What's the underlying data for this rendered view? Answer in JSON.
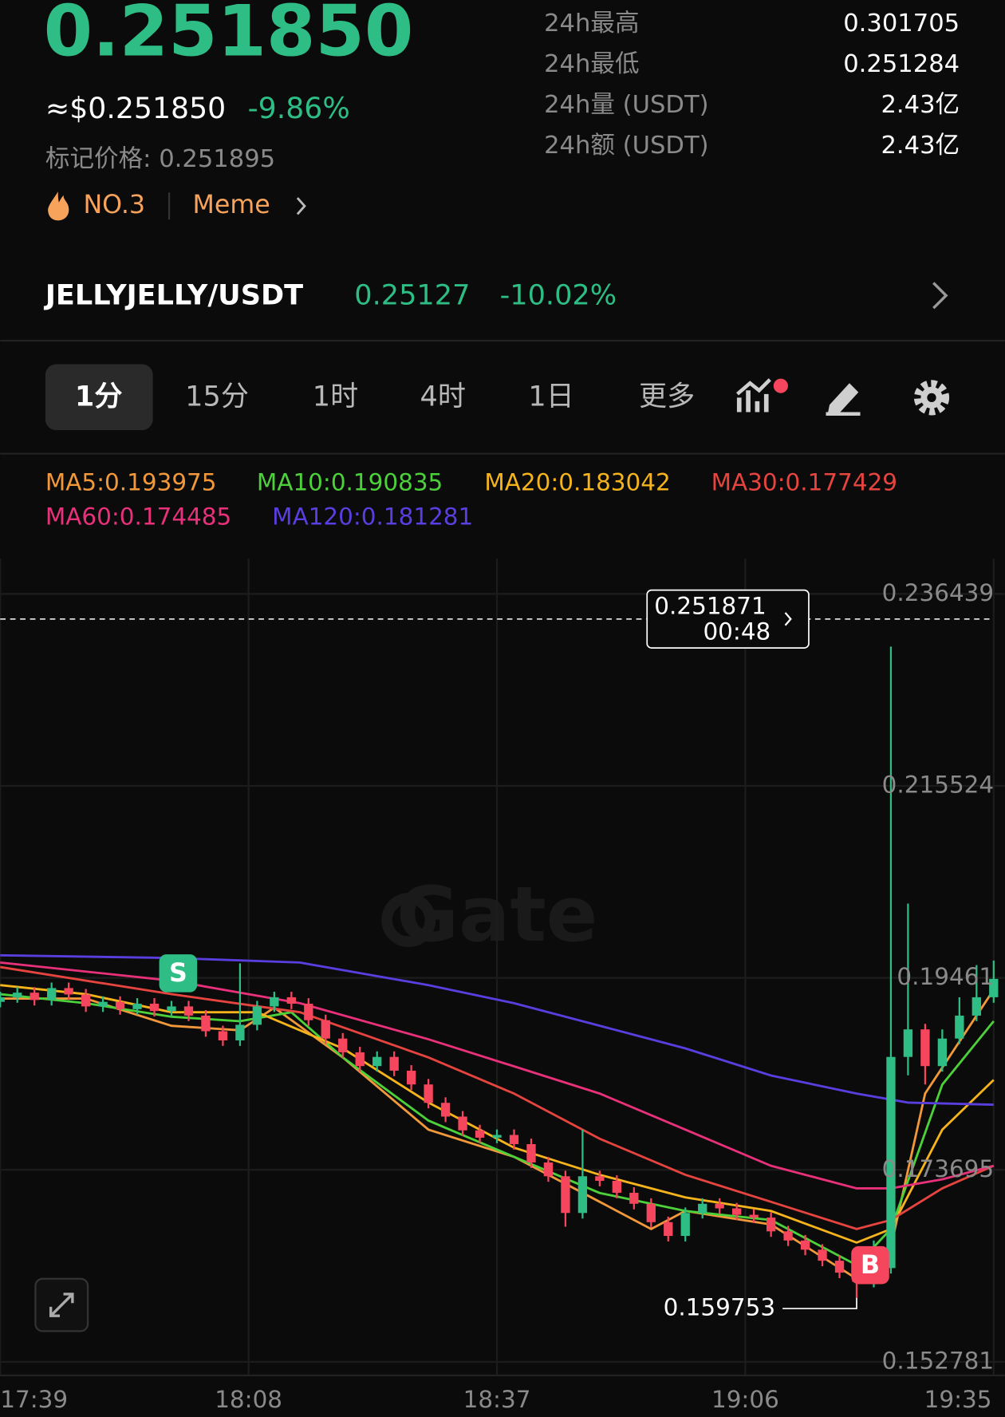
{
  "header": {
    "price": "0.251850",
    "usd_price": "≈$0.251850",
    "change": "-9.86%",
    "mark_price": "标记价格: 0.251895",
    "rank": "NO.3",
    "tag": "Meme",
    "stats": [
      {
        "label": "24h最高",
        "value": "0.301705"
      },
      {
        "label": "24h最低",
        "value": "0.251284"
      },
      {
        "label": "24h量 (USDT)",
        "value": "2.43亿"
      },
      {
        "label": "24h额 (USDT)",
        "value": "2.43亿"
      }
    ]
  },
  "pair": {
    "name": "JELLYJELLY/USDT",
    "price": "0.25127",
    "change": "-10.02%"
  },
  "tabs": [
    "1分",
    "15分",
    "1时",
    "4时",
    "1日",
    "更多"
  ],
  "chart_data": {
    "type": "candlestick",
    "watermark": "Gate",
    "last_price_label": "0.251871",
    "countdown": "00:48",
    "signals": [
      "S",
      "B"
    ],
    "x": [
      0,
      2,
      4,
      6,
      8,
      10,
      12,
      14,
      16,
      18,
      20,
      22,
      24,
      26,
      28,
      30,
      32,
      34,
      36,
      38,
      40,
      42,
      44,
      46,
      48,
      50,
      52,
      54,
      56,
      58,
      60,
      62,
      64,
      66,
      68,
      70,
      72,
      74,
      76,
      78,
      80,
      82,
      84,
      86,
      88,
      90,
      92,
      94,
      96,
      98,
      100,
      102,
      104,
      106,
      108,
      110,
      112,
      114,
      116
    ],
    "open": [
      0.192,
      0.1925,
      0.193,
      0.1922,
      0.1935,
      0.1928,
      0.1915,
      0.192,
      0.1912,
      0.1918,
      0.191,
      0.1915,
      0.1905,
      0.1888,
      0.1878,
      0.1895,
      0.1915,
      0.1925,
      0.1918,
      0.19,
      0.188,
      0.1865,
      0.185,
      0.186,
      0.1845,
      0.183,
      0.181,
      0.1795,
      0.178,
      0.1772,
      0.1775,
      0.1765,
      0.1745,
      0.173,
      0.169,
      0.173,
      0.1725,
      0.1712,
      0.17,
      0.168,
      0.1665,
      0.169,
      0.17,
      0.1695,
      0.1688,
      0.1685,
      0.167,
      0.166,
      0.165,
      0.1638,
      0.1625,
      0.1615,
      0.163,
      0.186,
      0.189,
      0.185,
      0.188,
      0.1905,
      0.1925
    ],
    "high": [
      0.1931,
      0.1936,
      0.1936,
      0.1941,
      0.1941,
      0.1934,
      0.1926,
      0.1926,
      0.1924,
      0.1924,
      0.1921,
      0.1921,
      0.1911,
      0.1894,
      0.1962,
      0.1921,
      0.1931,
      0.1931,
      0.1924,
      0.1906,
      0.1886,
      0.1871,
      0.1866,
      0.1866,
      0.1851,
      0.1836,
      0.1816,
      0.1801,
      0.1786,
      0.1781,
      0.1781,
      0.1771,
      0.1751,
      0.1736,
      0.1781,
      0.1736,
      0.1731,
      0.1718,
      0.1706,
      0.1686,
      0.1696,
      0.1706,
      0.1706,
      0.1701,
      0.1694,
      0.1691,
      0.1676,
      0.1666,
      0.1656,
      0.1644,
      0.1631,
      0.166,
      0.2307,
      0.2027,
      0.1896,
      0.189,
      0.1925,
      0.196,
      0.1965
    ],
    "low": [
      0.1914,
      0.1919,
      0.1916,
      0.1916,
      0.1922,
      0.1909,
      0.1909,
      0.1906,
      0.1906,
      0.1904,
      0.1904,
      0.1899,
      0.1882,
      0.1872,
      0.1872,
      0.1889,
      0.1909,
      0.1912,
      0.1894,
      0.1874,
      0.1859,
      0.1844,
      0.1844,
      0.1839,
      0.1824,
      0.1804,
      0.1789,
      0.1774,
      0.1766,
      0.1766,
      0.1759,
      0.1739,
      0.1724,
      0.1675,
      0.1684,
      0.1719,
      0.1706,
      0.1694,
      0.1674,
      0.1659,
      0.1659,
      0.1684,
      0.1689,
      0.1682,
      0.1679,
      0.1664,
      0.1654,
      0.1644,
      0.1632,
      0.1619,
      0.159753,
      0.1609,
      0.1624,
      0.184,
      0.183,
      0.1844,
      0.1874,
      0.1899,
      0.1919
    ],
    "close": [
      0.1925,
      0.193,
      0.1922,
      0.1935,
      0.1928,
      0.1915,
      0.192,
      0.1912,
      0.1918,
      0.191,
      0.1915,
      0.1905,
      0.1888,
      0.1878,
      0.1895,
      0.1915,
      0.1925,
      0.1918,
      0.19,
      0.188,
      0.1865,
      0.185,
      0.186,
      0.1845,
      0.183,
      0.181,
      0.1795,
      0.178,
      0.1772,
      0.1775,
      0.1765,
      0.1745,
      0.173,
      0.169,
      0.173,
      0.1725,
      0.1712,
      0.17,
      0.168,
      0.1665,
      0.169,
      0.17,
      0.1695,
      0.1688,
      0.1685,
      0.167,
      0.166,
      0.165,
      0.1638,
      0.1625,
      0.1615,
      0.163,
      0.186,
      0.189,
      0.185,
      0.188,
      0.1905,
      0.1925,
      0.1945
    ],
    "up_color": "#2ebd85",
    "down_color": "#f6465d",
    "series": [
      {
        "name": "MA5:0.193975",
        "color": "#f0983a",
        "x": [
          0,
          10,
          20,
          28,
          32,
          40,
          50,
          60,
          70,
          76,
          80,
          90,
          100,
          104,
          108,
          116
        ],
        "values": [
          0.19235,
          0.19235,
          0.18939,
          0.1889,
          0.19136,
          0.18595,
          0.17808,
          0.17512,
          0.17021,
          0.16725,
          0.16922,
          0.16774,
          0.16184,
          0.16529,
          0.18201,
          0.19333
        ]
      },
      {
        "name": "MA10:0.190835",
        "color": "#4cd13b",
        "x": [
          0,
          10,
          20,
          28,
          34,
          40,
          50,
          60,
          70,
          80,
          90,
          100,
          104,
          110,
          116
        ],
        "values": [
          0.19284,
          0.19185,
          0.19038,
          0.18989,
          0.19087,
          0.18595,
          0.17906,
          0.17512,
          0.17118,
          0.16922,
          0.16824,
          0.16332,
          0.16725,
          0.18299,
          0.18989
        ]
      },
      {
        "name": "MA20:0.183042",
        "color": "#f5b31c",
        "x": [
          0,
          10,
          20,
          30,
          40,
          50,
          60,
          70,
          80,
          90,
          100,
          104,
          110,
          116
        ],
        "values": [
          0.19382,
          0.19284,
          0.19087,
          0.19087,
          0.18693,
          0.18103,
          0.17611,
          0.17316,
          0.1707,
          0.16922,
          0.16577,
          0.16725,
          0.17808,
          0.18349
        ]
      },
      {
        "name": "MA30:0.177429",
        "color": "#e5443f",
        "x": [
          0,
          20,
          35,
          50,
          60,
          70,
          80,
          90,
          100,
          104,
          110,
          116
        ],
        "values": [
          0.19579,
          0.19284,
          0.19087,
          0.18595,
          0.18201,
          0.17709,
          0.17316,
          0.17021,
          0.16725,
          0.16824,
          0.17168,
          0.17414
        ]
      },
      {
        "name": "MA60:0.174485",
        "color": "#e8317a",
        "x": [
          0,
          20,
          35,
          50,
          60,
          70,
          80,
          90,
          100,
          104,
          110,
          116
        ],
        "values": [
          0.19628,
          0.19431,
          0.19185,
          0.18792,
          0.18497,
          0.18201,
          0.17808,
          0.17414,
          0.17168,
          0.17168,
          0.17267,
          0.17414
        ]
      },
      {
        "name": "MA120:0.181281",
        "color": "#5b3ee0",
        "x": [
          0,
          20,
          35,
          50,
          60,
          70,
          80,
          90,
          100,
          106,
          116
        ],
        "values": [
          0.19707,
          0.19677,
          0.19628,
          0.19382,
          0.19185,
          0.18939,
          0.18693,
          0.18398,
          0.18201,
          0.18102,
          0.1808
        ]
      }
    ],
    "ylim": [
      0.1515,
      0.2401
    ],
    "yticks": [
      0.236439,
      0.215524,
      0.19461,
      0.173695,
      0.152781
    ],
    "xlim": [
      0,
      117.3
    ],
    "xticks": [
      {
        "value": 0,
        "label": "17:39"
      },
      {
        "value": 29,
        "label": "18:08"
      },
      {
        "value": 58,
        "label": "18:37"
      },
      {
        "value": 87,
        "label": "19:06"
      },
      {
        "value": 116,
        "label": "19:35"
      }
    ],
    "grid": true
  }
}
